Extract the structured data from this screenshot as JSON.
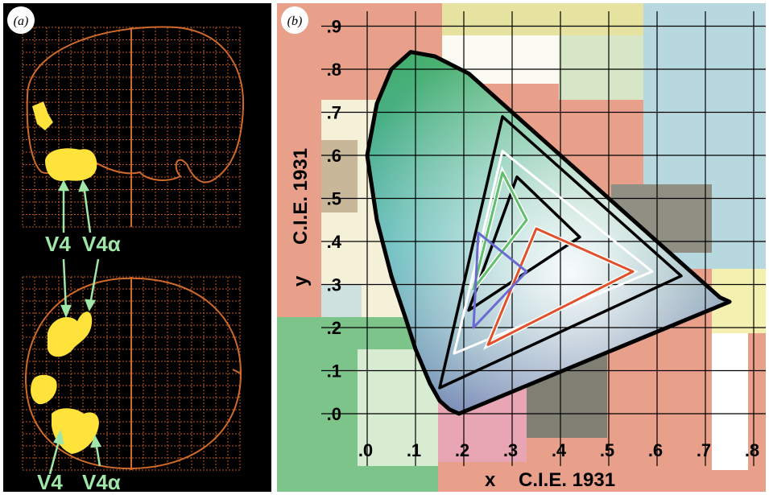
{
  "panel_a": {
    "label": "(a)",
    "v4_label_top": "V4",
    "v4a_label_top": "V4α",
    "v4_label_bottom": "V4",
    "v4a_label_bottom": "V4α",
    "colors": {
      "background": "#000000",
      "outline": "#d06a2a",
      "activation": "#ffe23a",
      "label": "#9fe6a8"
    }
  },
  "panel_b": {
    "label": "(b)",
    "colors": {
      "patch_background": "#e8a08b",
      "black_outline": "#000000",
      "green": "#5fbf6a",
      "red": "#e0502a",
      "blue": "#6a6ad0"
    }
  },
  "chart_data": {
    "type": "scatter",
    "xlabel_var": "x",
    "xlabel": "C.I.E. 1931",
    "ylabel_var": "y",
    "ylabel": "C.I.E. 1931",
    "xlim": [
      0,
      0.8
    ],
    "ylim": [
      0,
      0.9
    ],
    "x_ticks": [
      ".0",
      ".1",
      ".2",
      ".3",
      ".4",
      ".5",
      ".6",
      ".7",
      ".8"
    ],
    "y_ticks": [
      ".0",
      ".1",
      ".2",
      ".3",
      ".4",
      ".5",
      ".6",
      ".7",
      ".8",
      ".9"
    ],
    "grid": true,
    "triangles": [
      {
        "stroke": "black",
        "points": [
          [
            0.15,
            0.06
          ],
          [
            0.65,
            0.32
          ],
          [
            0.28,
            0.69
          ]
        ]
      },
      {
        "stroke": "black",
        "points": [
          [
            0.21,
            0.24
          ],
          [
            0.44,
            0.41
          ],
          [
            0.31,
            0.55
          ]
        ]
      },
      {
        "stroke": "white",
        "points": [
          [
            0.18,
            0.14
          ],
          [
            0.59,
            0.33
          ],
          [
            0.28,
            0.61
          ]
        ]
      },
      {
        "stroke": "green",
        "points": [
          [
            0.22,
            0.29
          ],
          [
            0.33,
            0.45
          ],
          [
            0.28,
            0.56
          ]
        ]
      },
      {
        "stroke": "red",
        "points": [
          [
            0.25,
            0.16
          ],
          [
            0.55,
            0.33
          ],
          [
            0.35,
            0.43
          ]
        ]
      },
      {
        "stroke": "blue",
        "points": [
          [
            0.22,
            0.2
          ],
          [
            0.33,
            0.33
          ],
          [
            0.23,
            0.42
          ]
        ]
      }
    ],
    "spectral_locus": [
      [
        0.17,
        0.01
      ],
      [
        0.15,
        0.03
      ],
      [
        0.13,
        0.07
      ],
      [
        0.1,
        0.15
      ],
      [
        0.08,
        0.22
      ],
      [
        0.05,
        0.32
      ],
      [
        0.02,
        0.45
      ],
      [
        0.0,
        0.6
      ],
      [
        0.02,
        0.72
      ],
      [
        0.05,
        0.8
      ],
      [
        0.09,
        0.84
      ],
      [
        0.14,
        0.83
      ],
      [
        0.21,
        0.79
      ],
      [
        0.3,
        0.7
      ],
      [
        0.4,
        0.6
      ],
      [
        0.52,
        0.48
      ],
      [
        0.63,
        0.37
      ],
      [
        0.73,
        0.27
      ],
      [
        0.75,
        0.26
      ],
      [
        0.19,
        0.0
      ]
    ]
  }
}
